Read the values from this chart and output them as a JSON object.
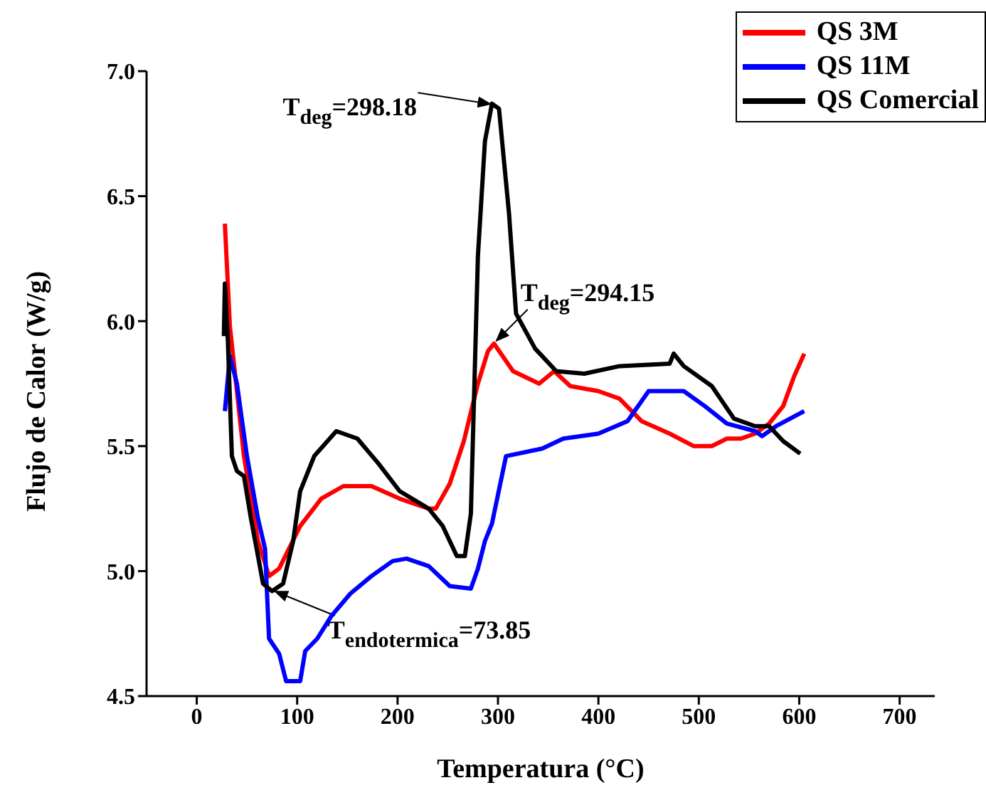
{
  "chart_data": {
    "type": "line",
    "xlabel": "Temperatura (°C)",
    "ylabel": "Flujo de Calor (W/g)",
    "xlim": [
      -50,
      735
    ],
    "ylim": [
      4.5,
      7.0
    ],
    "xticks": [
      0,
      100,
      200,
      300,
      400,
      500,
      600,
      700
    ],
    "yticks": [
      {
        "value": 4.5,
        "label": "4.5"
      },
      {
        "value": 5.0,
        "label": "5.0"
      },
      {
        "value": 5.5,
        "label": "5.5"
      },
      {
        "value": 6.0,
        "label": "6.0"
      },
      {
        "value": 6.5,
        "label": "6.5"
      },
      {
        "value": 7.0,
        "label": "7.0"
      }
    ],
    "legend": "top right",
    "grid": false,
    "marker": "none",
    "line_style": "solid",
    "series": [
      {
        "name": "QS 3M",
        "color": "#ff0000",
        "x": [
          28,
          33,
          47,
          61,
          72,
          82,
          103,
          124,
          146,
          174,
          202,
          231,
          238,
          252,
          266,
          280,
          290,
          296,
          315,
          341,
          356,
          372,
          400,
          421,
          443,
          471,
          495,
          513,
          528,
          542,
          556,
          570,
          584,
          595,
          605
        ],
        "values": [
          6.39,
          5.98,
          5.46,
          5.12,
          4.98,
          5.01,
          5.18,
          5.29,
          5.34,
          5.34,
          5.29,
          5.25,
          5.25,
          5.35,
          5.52,
          5.75,
          5.88,
          5.91,
          5.8,
          5.75,
          5.8,
          5.74,
          5.72,
          5.69,
          5.6,
          5.55,
          5.5,
          5.5,
          5.53,
          5.53,
          5.55,
          5.59,
          5.66,
          5.78,
          5.87
        ]
      },
      {
        "name": "QS 11M",
        "color": "#0000ff",
        "x": [
          28,
          33,
          40,
          50,
          61,
          68,
          72,
          82,
          89,
          103,
          108,
          120,
          134,
          153,
          174,
          195,
          209,
          231,
          252,
          273,
          280,
          287,
          294,
          308,
          344,
          365,
          400,
          429,
          450,
          485,
          506,
          528,
          556,
          563,
          577,
          591,
          605
        ],
        "values": [
          5.64,
          5.86,
          5.75,
          5.46,
          5.21,
          5.09,
          4.73,
          4.67,
          4.56,
          4.56,
          4.68,
          4.73,
          4.82,
          4.91,
          4.98,
          5.04,
          5.05,
          5.02,
          4.94,
          4.93,
          5.01,
          5.12,
          5.19,
          5.46,
          5.49,
          5.53,
          5.55,
          5.6,
          5.72,
          5.72,
          5.66,
          5.59,
          5.56,
          5.54,
          5.58,
          5.61,
          5.64
        ]
      },
      {
        "name": "QS Comercial",
        "color": "#000000",
        "x": [
          27,
          28,
          31,
          35,
          40,
          47,
          54,
          61,
          66,
          75,
          86,
          96,
          103,
          117,
          139,
          160,
          181,
          202,
          231,
          245,
          259,
          267,
          273,
          280,
          287,
          294,
          301,
          311,
          318,
          337,
          358,
          386,
          421,
          471,
          475,
          485,
          513,
          535,
          556,
          570,
          584,
          601
        ],
        "values": [
          5.94,
          6.15,
          5.92,
          5.46,
          5.4,
          5.38,
          5.21,
          5.06,
          4.95,
          4.92,
          4.95,
          5.12,
          5.32,
          5.46,
          5.56,
          5.53,
          5.43,
          5.32,
          5.25,
          5.18,
          5.06,
          5.06,
          5.23,
          6.26,
          6.72,
          6.87,
          6.85,
          6.43,
          6.03,
          5.89,
          5.8,
          5.79,
          5.82,
          5.83,
          5.87,
          5.82,
          5.74,
          5.61,
          5.58,
          5.58,
          5.52,
          5.47
        ]
      }
    ],
    "annotations": [
      {
        "text": "T$_{deg}$=298.18",
        "x": 298.18,
        "y": 6.88
      },
      {
        "text": "T$_{deg}$=294.15",
        "x": 294.15,
        "y": 5.91
      },
      {
        "text": "T$_{endotermica}$=73.85",
        "x": 73.85,
        "y": 4.93
      }
    ]
  }
}
